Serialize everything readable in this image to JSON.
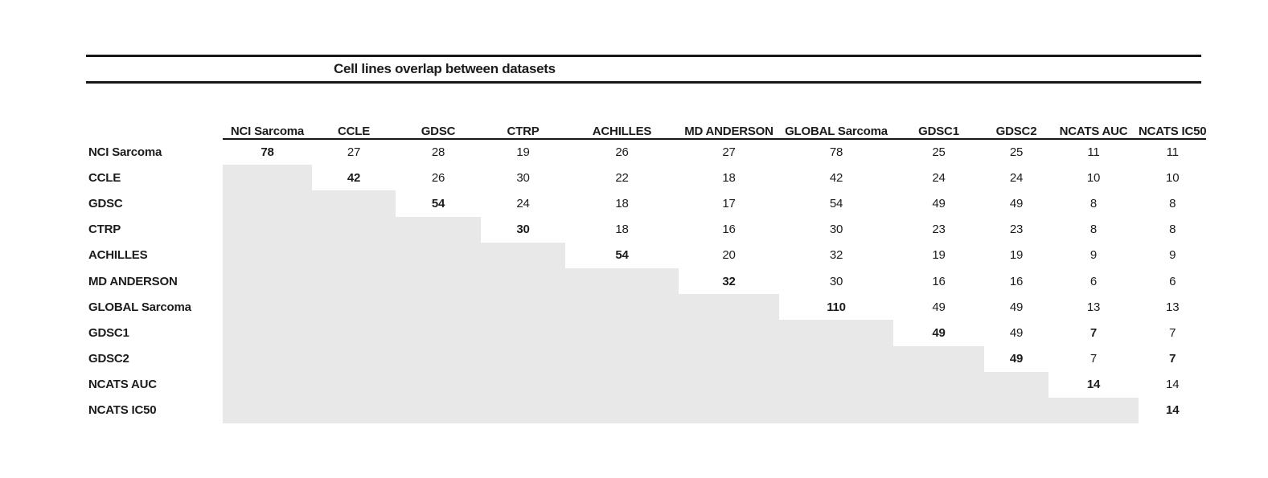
{
  "page": {
    "title": "Cell lines overlap between datasets"
  },
  "colors": {
    "shade": "#e8e8e8",
    "rule": "#161616",
    "text": "#1c1c1c"
  },
  "matrix": {
    "column_headers": [
      "NCI Sarcoma",
      "CCLE",
      "GDSC",
      "CTRP",
      "ACHILLES",
      "MD ANDERSON",
      "GLOBAL Sarcoma",
      "GDSC1",
      "GDSC2",
      "NCATS AUC",
      "NCATS IC50"
    ],
    "rows": [
      {
        "label": "NCI Sarcoma",
        "values": [
          78,
          27,
          28,
          19,
          26,
          27,
          78,
          25,
          25,
          11,
          11
        ],
        "bold_columns": [
          0
        ]
      },
      {
        "label": "CCLE",
        "values": [
          null,
          42,
          26,
          30,
          22,
          18,
          42,
          24,
          24,
          10,
          10
        ],
        "bold_columns": [
          1
        ]
      },
      {
        "label": "GDSC",
        "values": [
          null,
          null,
          54,
          24,
          18,
          17,
          54,
          49,
          49,
          8,
          8
        ],
        "bold_columns": [
          2
        ]
      },
      {
        "label": "CTRP",
        "values": [
          null,
          null,
          null,
          30,
          18,
          16,
          30,
          23,
          23,
          8,
          8
        ],
        "bold_columns": [
          3
        ]
      },
      {
        "label": "ACHILLES",
        "values": [
          null,
          null,
          null,
          null,
          54,
          20,
          32,
          19,
          19,
          9,
          9
        ],
        "bold_columns": [
          4
        ]
      },
      {
        "label": "MD ANDERSON",
        "values": [
          null,
          null,
          null,
          null,
          null,
          32,
          30,
          16,
          16,
          6,
          6
        ],
        "bold_columns": [
          5
        ]
      },
      {
        "label": "GLOBAL Sarcoma",
        "values": [
          null,
          null,
          null,
          null,
          null,
          null,
          110,
          49,
          49,
          13,
          13
        ],
        "bold_columns": [
          6
        ]
      },
      {
        "label": "GDSC1",
        "values": [
          null,
          null,
          null,
          null,
          null,
          null,
          null,
          49,
          49,
          7,
          7
        ],
        "bold_columns": [
          7,
          9
        ]
      },
      {
        "label": "GDSC2",
        "values": [
          null,
          null,
          null,
          null,
          null,
          null,
          null,
          null,
          49,
          7,
          7
        ],
        "bold_columns": [
          8,
          10
        ]
      },
      {
        "label": "NCATS AUC",
        "values": [
          null,
          null,
          null,
          null,
          null,
          null,
          null,
          null,
          null,
          14,
          14
        ],
        "bold_columns": [
          9
        ]
      },
      {
        "label": "NCATS IC50",
        "values": [
          null,
          null,
          null,
          null,
          null,
          null,
          null,
          null,
          null,
          null,
          14
        ],
        "bold_columns": [
          10
        ]
      }
    ]
  }
}
